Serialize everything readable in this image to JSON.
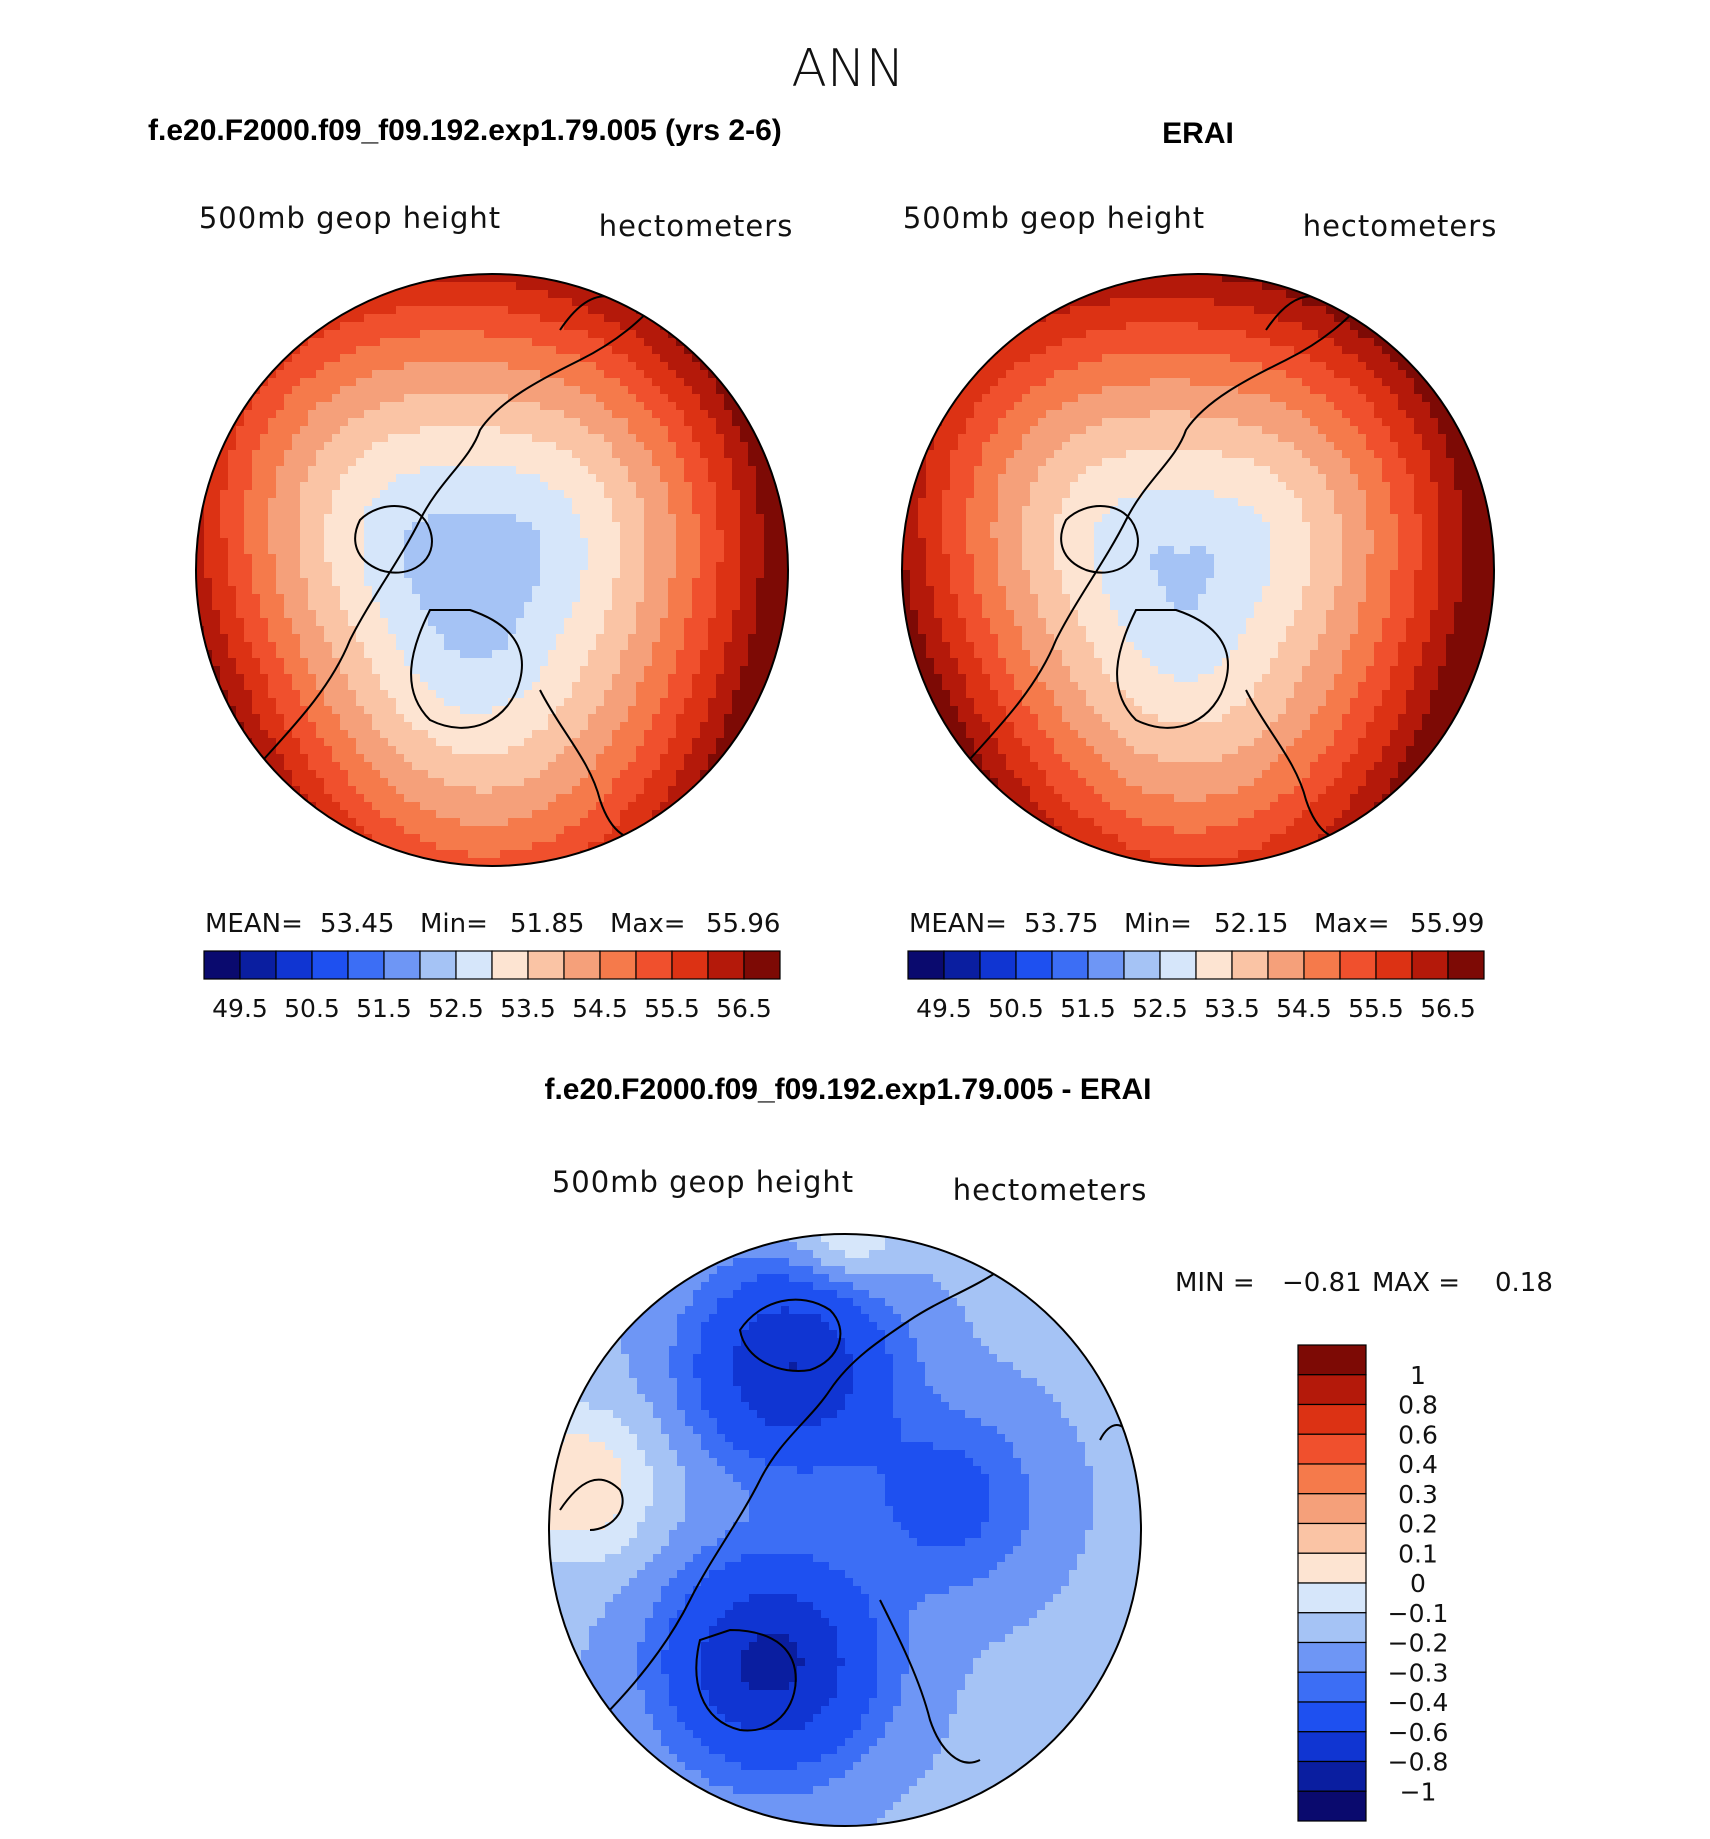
{
  "chart_data": {
    "type": "heatmap",
    "title": "ANN",
    "panels": [
      {
        "id": "model",
        "header": "f.e20.F2000.f09_f09.192.exp1.79.005 (yrs 2-6)",
        "variable": "500mb geop height",
        "units": "hectometers",
        "stats": {
          "mean_label": "MEAN=",
          "mean": "53.45",
          "min_label": "Min=",
          "min": "51.85",
          "max_label": "Max=",
          "max": "55.96"
        },
        "field": {
          "pole_value": 52.1,
          "center_offset": 0.1,
          "lobes": [
            [
              0.6,
              0.02,
              0.4
            ]
          ]
        }
      },
      {
        "id": "obs",
        "header": "ERAI",
        "variable": "500mb geop height",
        "units": "hectometers",
        "stats": {
          "mean_label": "MEAN=",
          "mean": "53.75",
          "min_label": "Min=",
          "min": "52.15",
          "max_label": "Max=",
          "max": "55.99"
        },
        "field": {
          "pole_value": 52.4,
          "center_offset": 0.08,
          "lobes": [
            [
              0.5,
              0.02,
              0.4
            ]
          ]
        }
      },
      {
        "id": "diff",
        "header": "f.e20.F2000.f09_f09.192.exp1.79.005 - ERAI",
        "variable": "500mb geop height",
        "units": "hectometers",
        "stats": {
          "min_label": "MIN =",
          "min": "−0.81",
          "max_label": "MAX =",
          "max": "0.18"
        }
      }
    ],
    "absolute_colorbar": {
      "levels": [
        49.5,
        50,
        50.5,
        51,
        51.5,
        52,
        52.5,
        53,
        53.5,
        54,
        54.5,
        55,
        55.5,
        56,
        56.5
      ],
      "tick_labels": [
        "49.5",
        "50.5",
        "51.5",
        "52.5",
        "53.5",
        "54.5",
        "55.5",
        "56.5"
      ],
      "colors": [
        "#0a0a6e",
        "#0a1ea0",
        "#1035d2",
        "#1e50f0",
        "#3c6ef5",
        "#6e96f5",
        "#a5c3f5",
        "#d6e6fa",
        "#fde4d2",
        "#fac4a5",
        "#f5a07a",
        "#f57a4b",
        "#f0502d",
        "#dc3214",
        "#b4190a",
        "#7d0a05"
      ]
    },
    "difference_colorbar": {
      "levels": [
        -1,
        -0.8,
        -0.6,
        -0.4,
        -0.3,
        -0.2,
        -0.1,
        0,
        0.1,
        0.2,
        0.3,
        0.4,
        0.6,
        0.8,
        1
      ],
      "tick_labels": [
        "1",
        "0.8",
        "0.6",
        "0.4",
        "0.3",
        "0.2",
        "0.1",
        "0",
        "−0.1",
        "−0.2",
        "−0.3",
        "−0.4",
        "−0.6",
        "−0.8",
        "−1"
      ],
      "colors": [
        "#0a0a6e",
        "#0a1ea0",
        "#1035d2",
        "#1e50f0",
        "#3c6ef5",
        "#6e96f5",
        "#a5c3f5",
        "#d6e6fa",
        "#fde4d2",
        "#fac4a5",
        "#f5a07a",
        "#f57a4b",
        "#f0502d",
        "#dc3214",
        "#b4190a",
        "#7d0a05"
      ]
    }
  }
}
